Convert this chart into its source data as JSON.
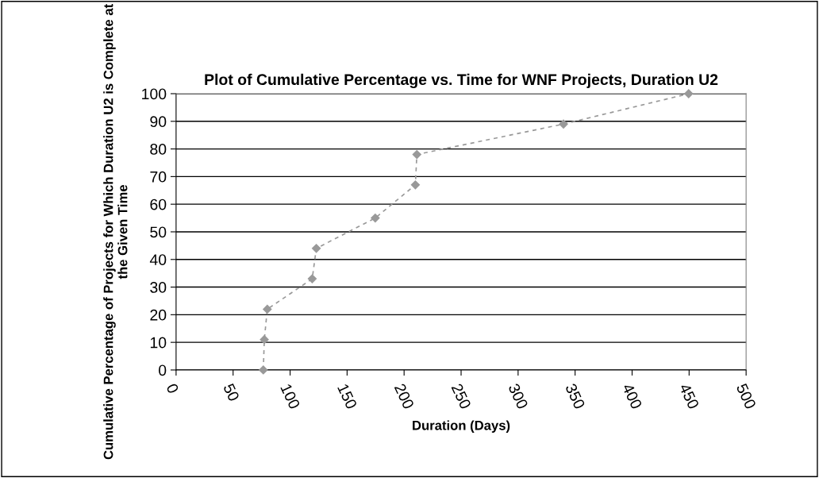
{
  "chart_data": {
    "type": "line",
    "title": "Plot of Cumulative Percentage vs. Time for WNF Projects, Duration U2",
    "xlabel": "Duration (Days)",
    "ylabel": "Cumulative Percentage of Projects for Which Duration U2 is Complete at the Given Time",
    "series": [
      {
        "color": "#999999",
        "x": [
          76.5,
          77.4,
          80,
          119.4,
          123,
          174.7,
          209.9,
          211.2,
          339.8,
          449.6
        ],
        "values": [
          0,
          11,
          22,
          33,
          44,
          55,
          67,
          78,
          89,
          100
        ]
      }
    ],
    "xlim": [
      0,
      500
    ],
    "xticks": [
      0,
      50,
      100,
      150,
      200,
      250,
      300,
      350,
      400,
      450,
      500
    ],
    "ylim": [
      0,
      100
    ],
    "yticks": [
      0,
      10,
      20,
      30,
      40,
      50,
      60,
      70,
      80,
      90,
      100
    ],
    "grid": "y",
    "marker": "diamond",
    "line_style": "dashed",
    "legend": false
  }
}
